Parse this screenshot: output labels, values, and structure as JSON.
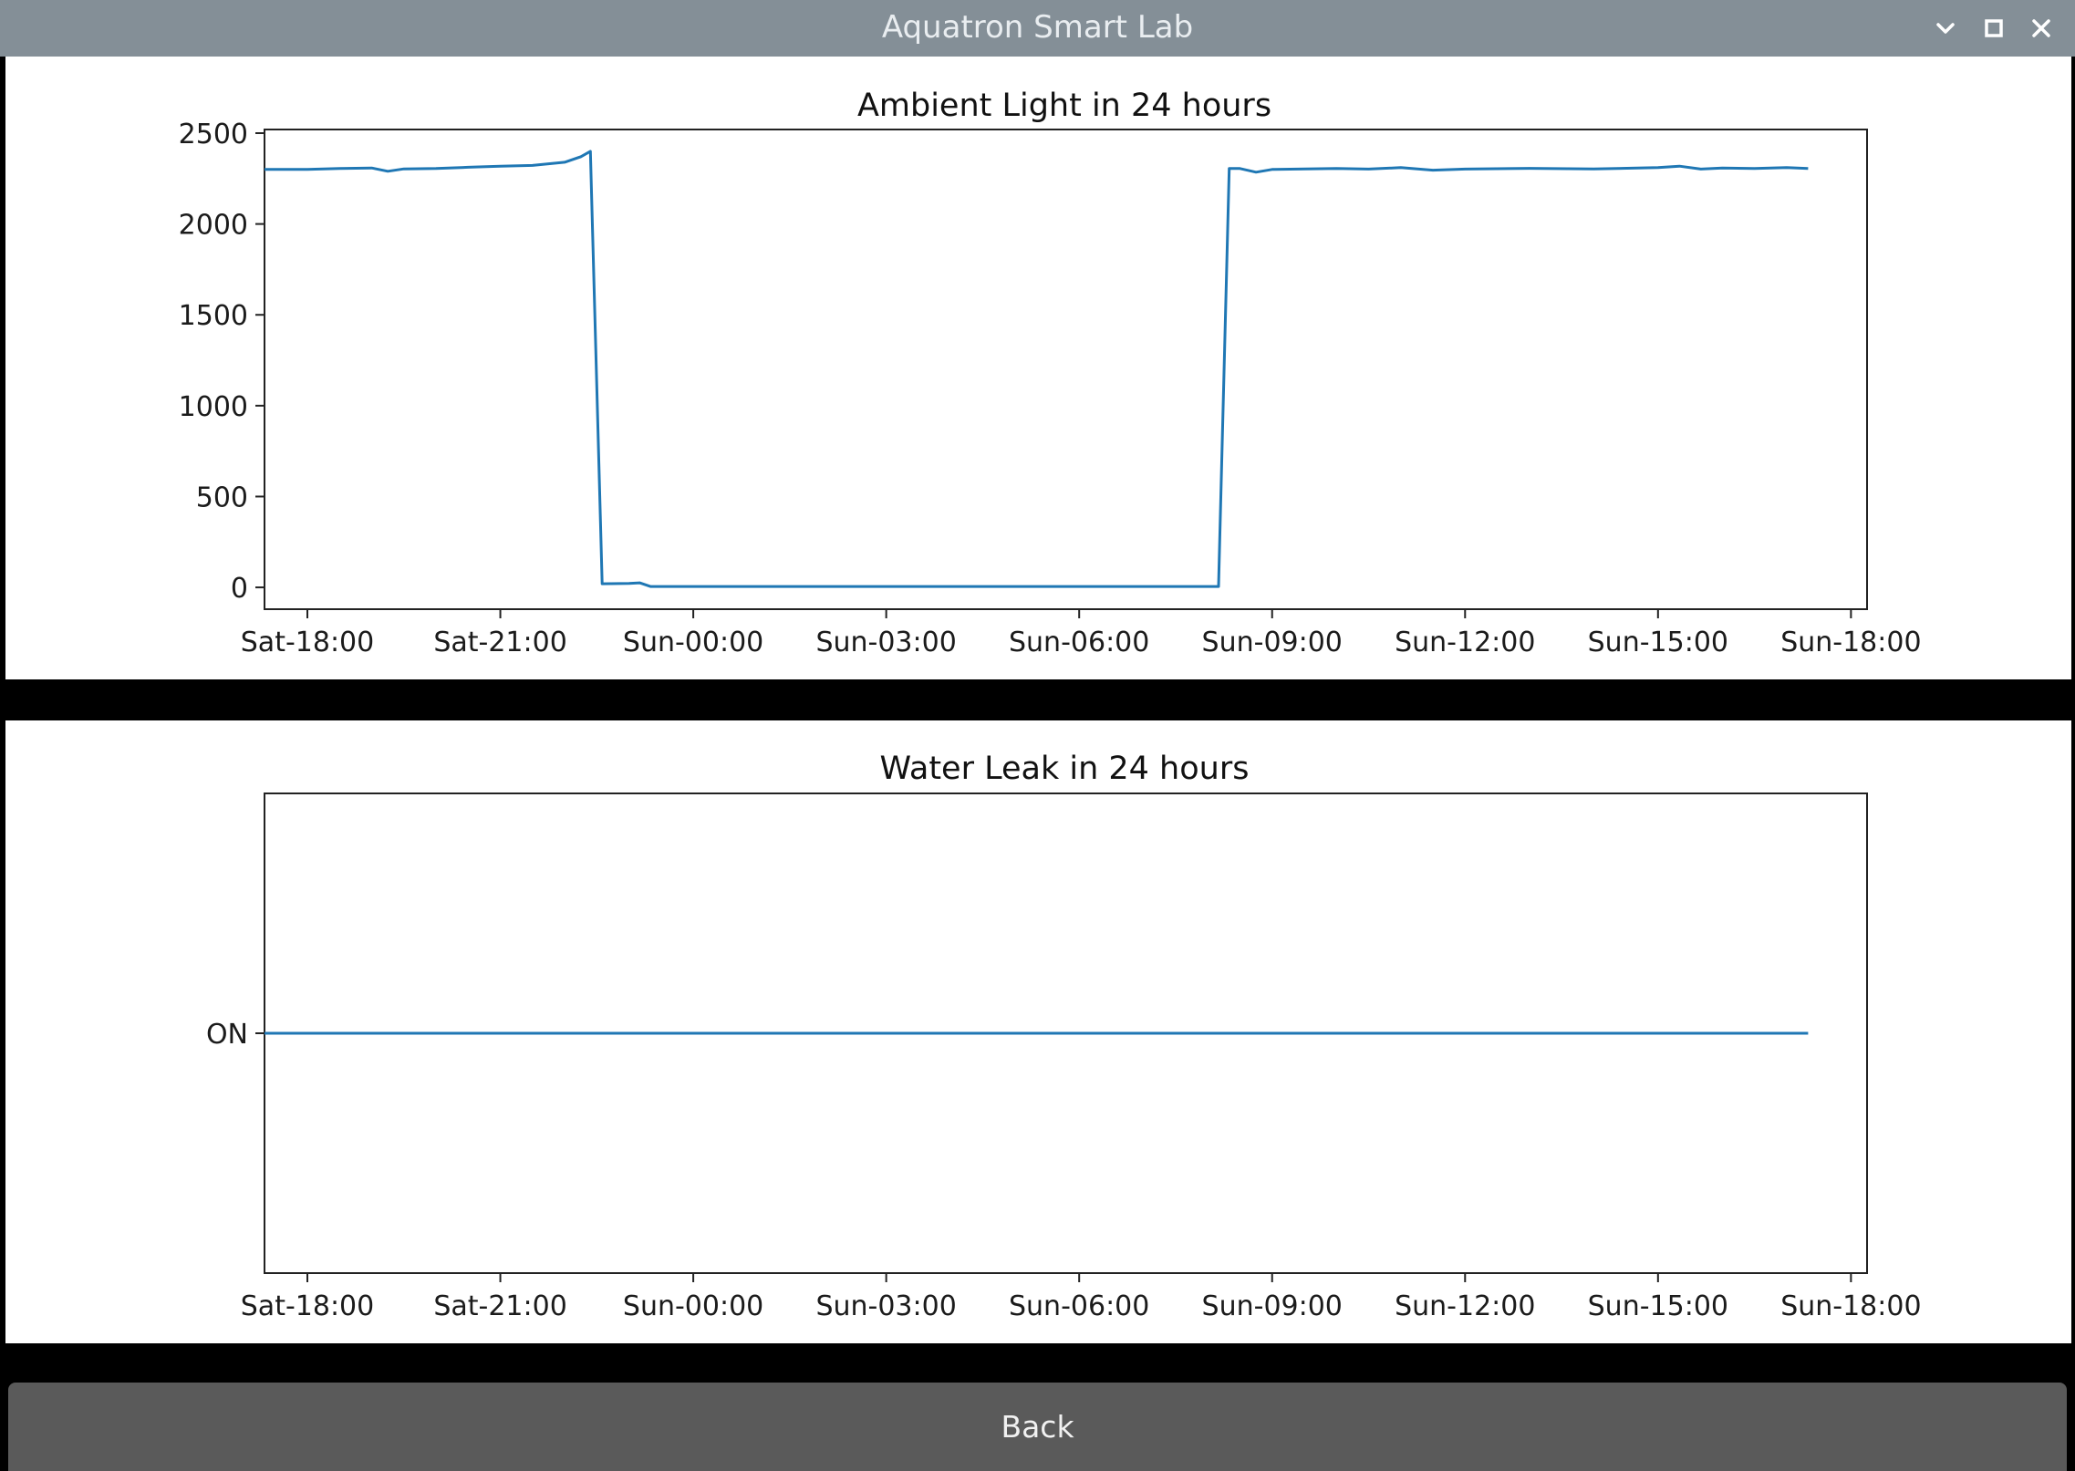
{
  "window": {
    "title": "Aquatron Smart Lab",
    "controls": [
      {
        "name": "minimize",
        "icon": "chevron-down-icon"
      },
      {
        "name": "maximize",
        "icon": "square-icon"
      },
      {
        "name": "close",
        "icon": "close-icon"
      }
    ]
  },
  "colors": {
    "titlebar": "#848f97",
    "series": "#1f77b4",
    "back_button": "#5a5a5a"
  },
  "chart_data": [
    {
      "type": "line",
      "title": "Ambient Light in 24 hours",
      "xlabel": "",
      "ylabel": "",
      "xlim": [
        "Sat-17:20",
        "Sun-18:15"
      ],
      "ylim": [
        -120,
        2520
      ],
      "x_ticks": [
        "Sat-18:00",
        "Sat-21:00",
        "Sun-00:00",
        "Sun-03:00",
        "Sun-06:00",
        "Sun-09:00",
        "Sun-12:00",
        "Sun-15:00",
        "Sun-18:00"
      ],
      "y_ticks": [
        "0",
        "500",
        "1000",
        "1500",
        "2000",
        "2500"
      ],
      "y_tick_values": [
        0,
        500,
        1000,
        1500,
        2000,
        2500
      ],
      "grid": false,
      "series": [
        {
          "color": "#1f77b4",
          "points": [
            [
              "Sat-17:20",
              2300
            ],
            [
              "Sat-18:00",
              2300
            ],
            [
              "Sat-18:30",
              2305
            ],
            [
              "Sat-19:00",
              2308
            ],
            [
              "Sat-19:15",
              2290
            ],
            [
              "Sat-19:30",
              2303
            ],
            [
              "Sat-20:00",
              2305
            ],
            [
              "Sat-20:30",
              2312
            ],
            [
              "Sat-21:00",
              2318
            ],
            [
              "Sat-21:30",
              2322
            ],
            [
              "Sat-22:00",
              2340
            ],
            [
              "Sat-22:15",
              2370
            ],
            [
              "Sat-22:24",
              2400
            ],
            [
              "Sat-22:35",
              20
            ],
            [
              "Sat-23:00",
              22
            ],
            [
              "Sat-23:10",
              25
            ],
            [
              "Sat-23:20",
              5
            ],
            [
              "Sun-00:00",
              5
            ],
            [
              "Sun-03:00",
              5
            ],
            [
              "Sun-06:00",
              5
            ],
            [
              "Sun-08:10",
              5
            ],
            [
              "Sun-08:20",
              2305
            ],
            [
              "Sun-08:30",
              2305
            ],
            [
              "Sun-08:45",
              2285
            ],
            [
              "Sun-09:00",
              2300
            ],
            [
              "Sun-10:00",
              2305
            ],
            [
              "Sun-10:30",
              2302
            ],
            [
              "Sun-11:00",
              2310
            ],
            [
              "Sun-11:30",
              2296
            ],
            [
              "Sun-12:00",
              2302
            ],
            [
              "Sun-13:00",
              2306
            ],
            [
              "Sun-14:00",
              2303
            ],
            [
              "Sun-15:00",
              2310
            ],
            [
              "Sun-15:20",
              2318
            ],
            [
              "Sun-15:40",
              2302
            ],
            [
              "Sun-16:00",
              2308
            ],
            [
              "Sun-16:30",
              2305
            ],
            [
              "Sun-17:00",
              2310
            ],
            [
              "Sun-17:20",
              2305
            ]
          ]
        }
      ]
    },
    {
      "type": "line",
      "title": "Water Leak in 24 hours",
      "xlabel": "",
      "ylabel": "",
      "xlim": [
        "Sat-17:20",
        "Sun-18:15"
      ],
      "ylim": [
        -1,
        1
      ],
      "x_ticks": [
        "Sat-18:00",
        "Sat-21:00",
        "Sun-00:00",
        "Sun-03:00",
        "Sun-06:00",
        "Sun-09:00",
        "Sun-12:00",
        "Sun-15:00",
        "Sun-18:00"
      ],
      "y_ticks": [
        "ON"
      ],
      "y_tick_values": [
        0
      ],
      "grid": false,
      "series": [
        {
          "color": "#1f77b4",
          "points": [
            [
              "Sat-17:20",
              "ON"
            ],
            [
              "Sun-17:20",
              "ON"
            ]
          ]
        }
      ]
    }
  ],
  "back_button": {
    "label": "Back"
  }
}
